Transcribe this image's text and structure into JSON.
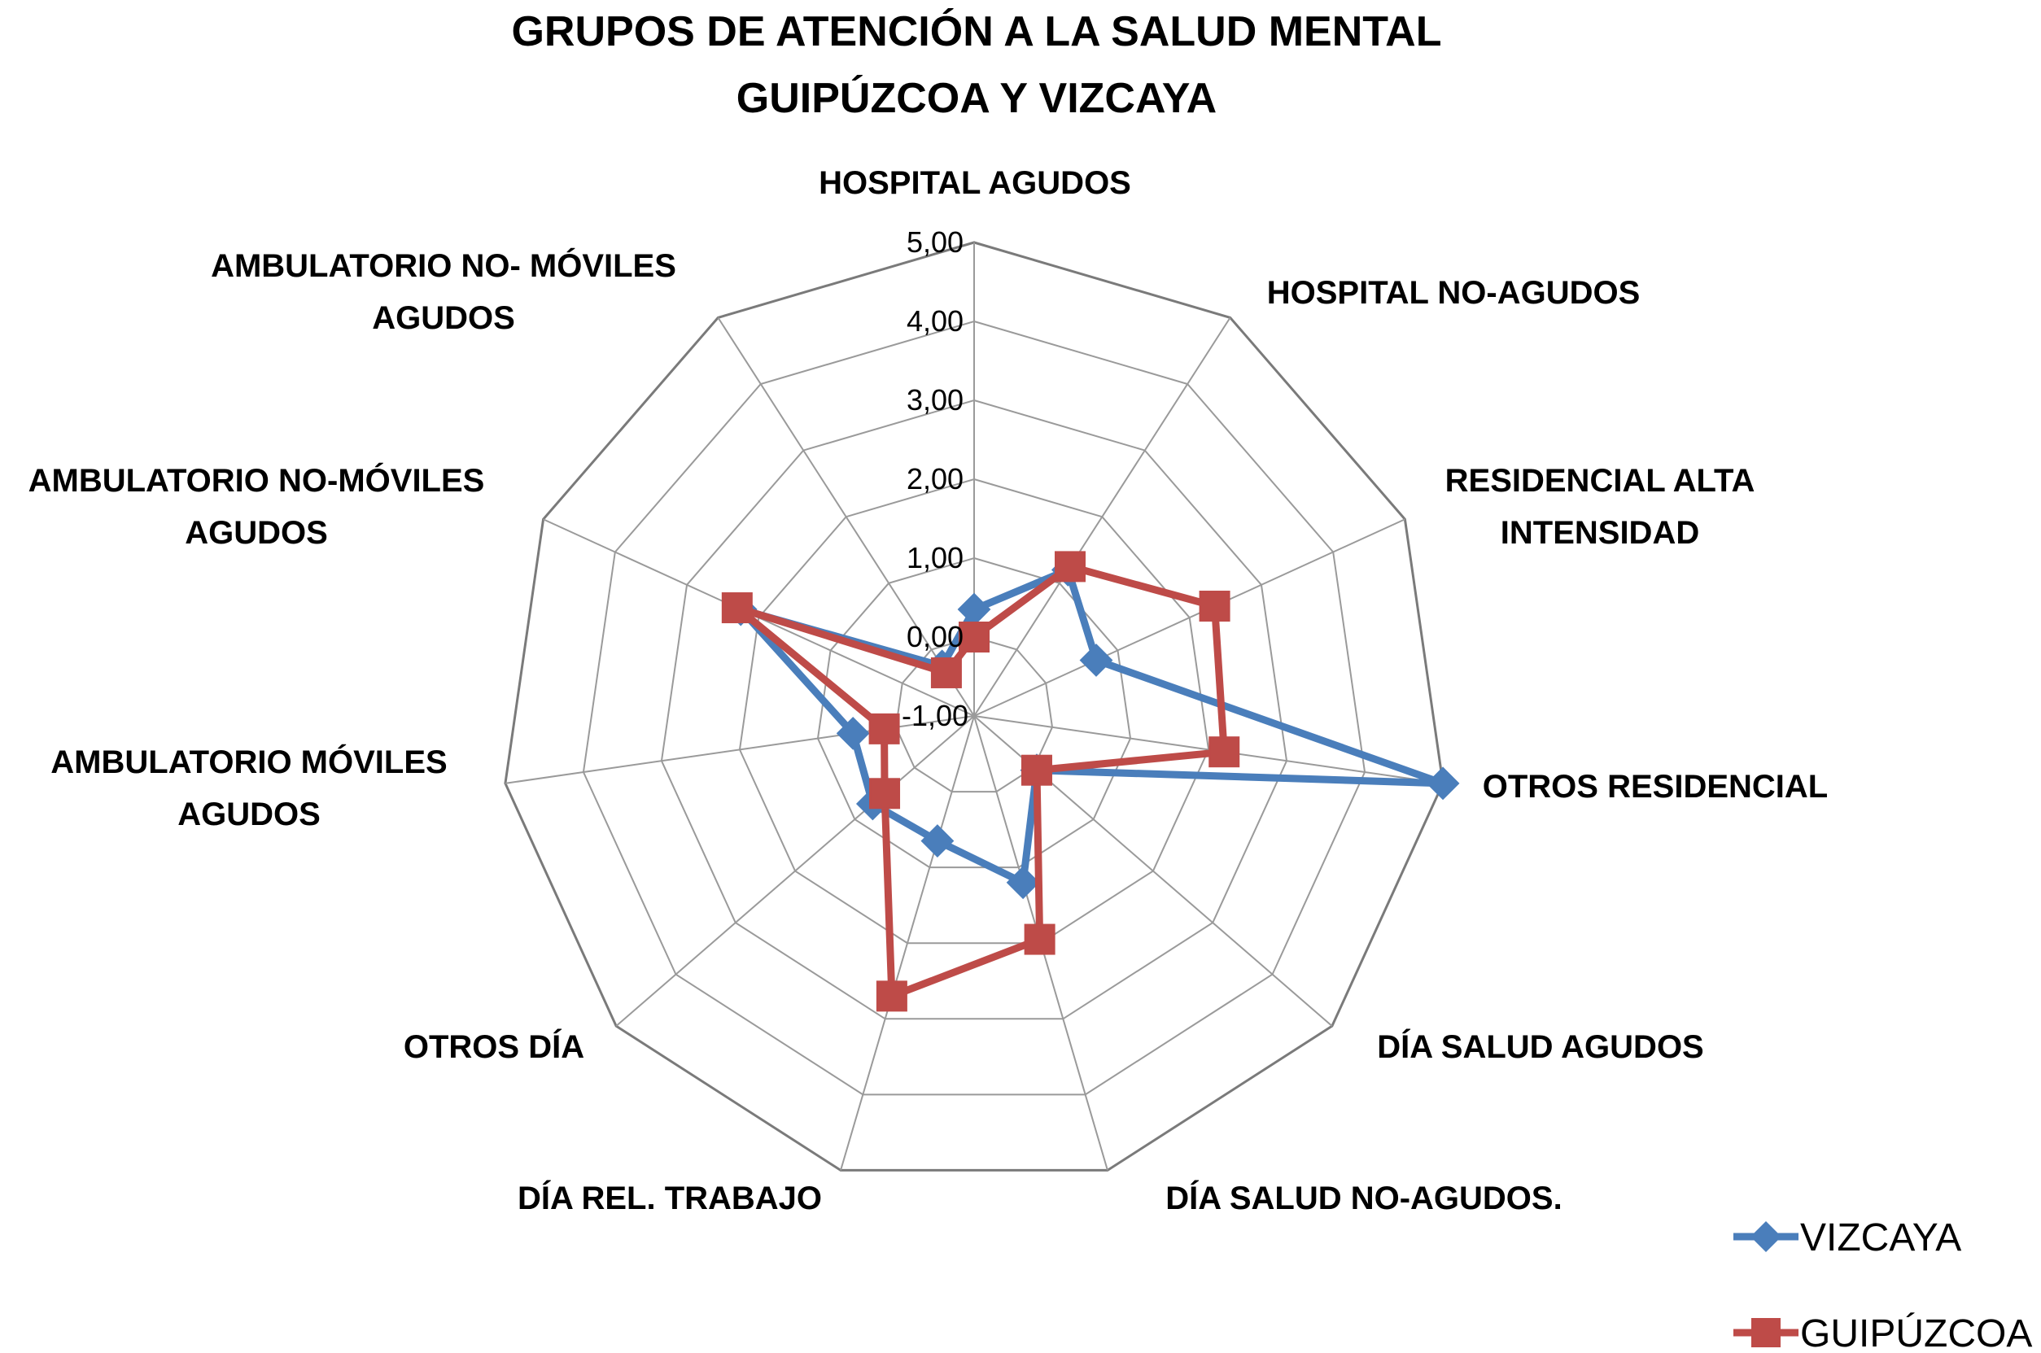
{
  "chart_data": {
    "type": "radar",
    "title": [
      "GRUPOS DE ATENCIÓN A LA SALUD MENTAL",
      "GUIPÚZCOA Y VIZCAYA"
    ],
    "categories": [
      [
        "HOSPITAL AGUDOS"
      ],
      [
        "HOSPITAL NO-AGUDOS"
      ],
      [
        "RESIDENCIAL ALTA",
        "INTENSIDAD"
      ],
      [
        "OTROS RESIDENCIAL"
      ],
      [
        "DÍA SALUD AGUDOS"
      ],
      [
        "DÍA SALUD NO-AGUDOS."
      ],
      [
        "DÍA REL. TRABAJO"
      ],
      [
        "OTROS DÍA"
      ],
      [
        "AMBULATORIO  MÓVILES",
        "AGUDOS"
      ],
      [
        "AMBULATORIO NO-MÓVILES",
        "AGUDOS"
      ],
      [
        "AMBULATORIO NO- MÓVILES",
        "AGUDOS"
      ]
    ],
    "tick_labels": [
      "-1,00",
      "0,00",
      "1,00",
      "2,00",
      "3,00",
      "4,00",
      "5,00"
    ],
    "rlim": [
      -1,
      5
    ],
    "grid": true,
    "legend_position": "bottom-right",
    "series": [
      {
        "name": "VIZCAYA",
        "color": "#4a7ebb",
        "marker": "diamond",
        "values": [
          0.35,
          1.2,
          0.7,
          5.0,
          0.05,
          1.2,
          0.65,
          0.7,
          0.55,
          2.25,
          -0.25
        ]
      },
      {
        "name": "GUIPÚZCOA",
        "color": "#be4b48",
        "marker": "square",
        "values": [
          0.0,
          1.25,
          2.35,
          2.2,
          0.05,
          1.95,
          2.7,
          0.5,
          0.15,
          2.3,
          -0.35
        ]
      }
    ]
  }
}
